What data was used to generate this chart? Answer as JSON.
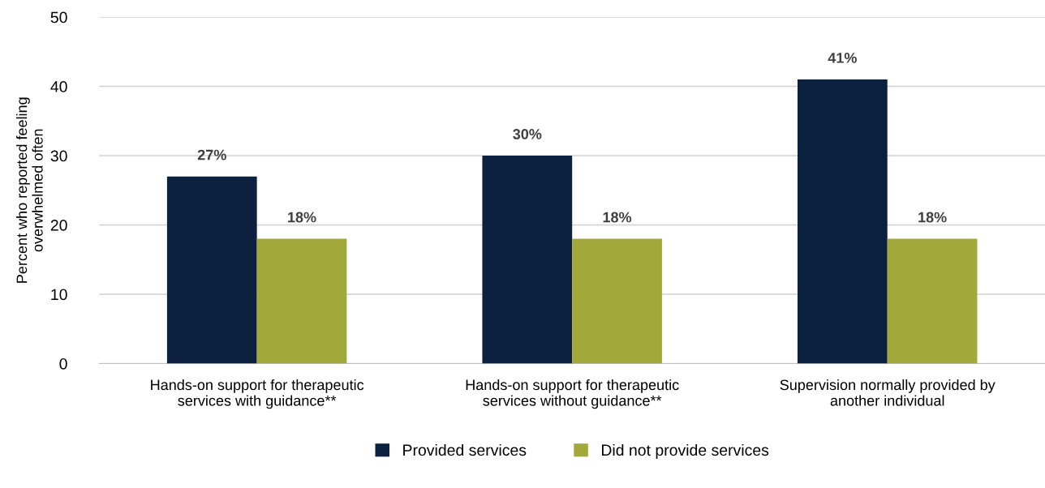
{
  "chart_data": {
    "type": "bar",
    "categories": [
      "Hands-on support for therapeutic\nservices with guidance**",
      "Hands-on support for therapeutic\nservices without guidance**",
      "Supervision normally provided by\nanother individual"
    ],
    "series": [
      {
        "name": "Provided services",
        "color": "#0c2040",
        "values": [
          27,
          30,
          41
        ],
        "value_labels": [
          "27%",
          "30%",
          "41%"
        ]
      },
      {
        "name": "Did not provide services",
        "color": "#a3a83a",
        "values": [
          18,
          18,
          18
        ],
        "value_labels": [
          "18%",
          "18%",
          "18%"
        ]
      }
    ],
    "ylabel": "Percent who reported feeling\noverwhelmed often",
    "ylim": [
      0,
      50
    ],
    "yticks": [
      0,
      10,
      20,
      30,
      40,
      50
    ],
    "grid": "y",
    "legend": "bottom"
  }
}
